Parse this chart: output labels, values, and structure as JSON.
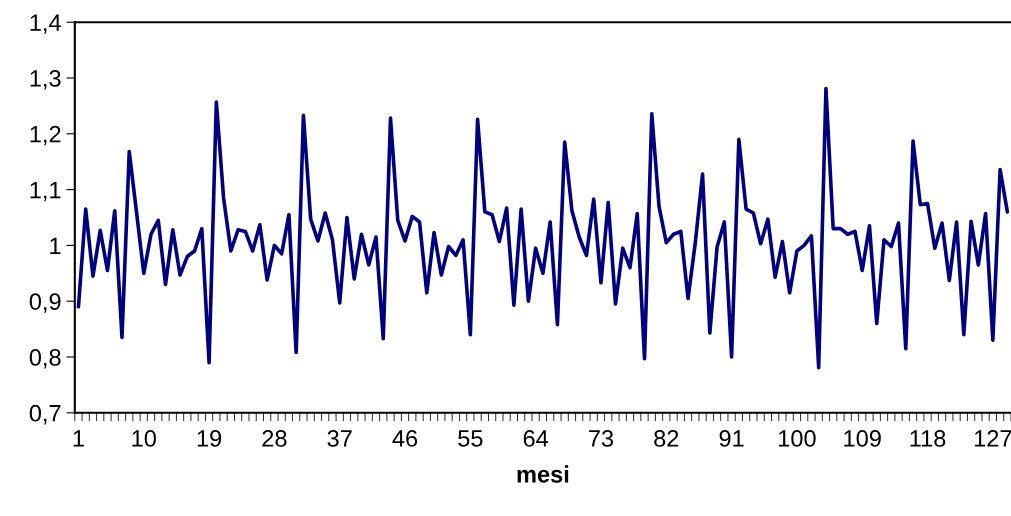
{
  "chart_data": {
    "type": "line",
    "xlabel": "mesi",
    "categories": [
      "1",
      null,
      null,
      null,
      null,
      null,
      null,
      null,
      null,
      "10",
      null,
      null,
      null,
      null,
      null,
      null,
      null,
      null,
      "19",
      null,
      null,
      null,
      null,
      null,
      null,
      null,
      null,
      "28",
      null,
      null,
      null,
      null,
      null,
      null,
      null,
      null,
      "37",
      null,
      null,
      null,
      null,
      null,
      null,
      null,
      null,
      "46",
      null,
      null,
      null,
      null,
      null,
      null,
      null,
      null,
      "55",
      null,
      null,
      null,
      null,
      null,
      null,
      null,
      null,
      "64",
      null,
      null,
      null,
      null,
      null,
      null,
      null,
      null,
      "73",
      null,
      null,
      null,
      null,
      null,
      null,
      null,
      null,
      "82",
      null,
      null,
      null,
      null,
      null,
      null,
      null,
      null,
      "91",
      null,
      null,
      null,
      null,
      null,
      null,
      null,
      null,
      "100",
      null,
      null,
      null,
      null,
      null,
      null,
      null,
      null,
      "109",
      null,
      null,
      null,
      null,
      null,
      null,
      null,
      null,
      "118",
      null,
      null,
      null,
      null,
      null,
      null,
      null,
      null,
      "127",
      null,
      null
    ],
    "series": [
      {
        "color": "#000080",
        "values": [
          0.89,
          1.065,
          0.945,
          1.027,
          0.955,
          1.062,
          0.835,
          1.168,
          1.06,
          0.95,
          1.02,
          1.045,
          0.93,
          1.028,
          0.947,
          0.98,
          0.99,
          1.03,
          0.79,
          1.257,
          1.085,
          0.99,
          1.028,
          1.025,
          0.99,
          1.037,
          0.938,
          1.0,
          0.985,
          1.055,
          0.808,
          1.233,
          1.047,
          1.008,
          1.058,
          1.01,
          0.897,
          1.05,
          0.94,
          1.02,
          0.965,
          1.015,
          0.833,
          1.228,
          1.045,
          1.008,
          1.052,
          1.042,
          0.915,
          1.023,
          0.947,
          0.998,
          0.982,
          1.01,
          0.84,
          1.226,
          1.06,
          1.055,
          1.007,
          1.067,
          0.893,
          1.065,
          0.9,
          0.995,
          0.95,
          1.042,
          0.858,
          1.185,
          1.062,
          1.015,
          0.982,
          1.083,
          0.933,
          1.077,
          0.895,
          0.995,
          0.96,
          1.057,
          0.797,
          1.236,
          1.07,
          1.005,
          1.02,
          1.025,
          0.905,
          1.005,
          1.128,
          0.843,
          0.997,
          1.042,
          0.8,
          1.19,
          1.065,
          1.058,
          1.003,
          1.047,
          0.943,
          1.007,
          0.915,
          0.99,
          1.0,
          1.017,
          0.781,
          1.281,
          1.03,
          1.03,
          1.02,
          1.025,
          0.955,
          1.035,
          0.86,
          1.01,
          0.998,
          1.04,
          0.815,
          1.187,
          1.073,
          1.075,
          0.995,
          1.04,
          0.937,
          1.042,
          0.84,
          1.043,
          0.965,
          1.057,
          0.83,
          1.136,
          1.06
        ]
      }
    ],
    "ylim": [
      0.7,
      1.4
    ],
    "yticks": [
      {
        "value": 0.7,
        "label": "0,7"
      },
      {
        "value": 0.8,
        "label": "0,8"
      },
      {
        "value": 0.9,
        "label": "0,9"
      },
      {
        "value": 1.0,
        "label": "1"
      },
      {
        "value": 1.1,
        "label": "1,1"
      },
      {
        "value": 1.2,
        "label": "1,2"
      },
      {
        "value": 1.3,
        "label": "1,3"
      },
      {
        "value": 1.4,
        "label": "1,4"
      }
    ],
    "grid": false,
    "marker": "none",
    "line_style": "solid"
  }
}
